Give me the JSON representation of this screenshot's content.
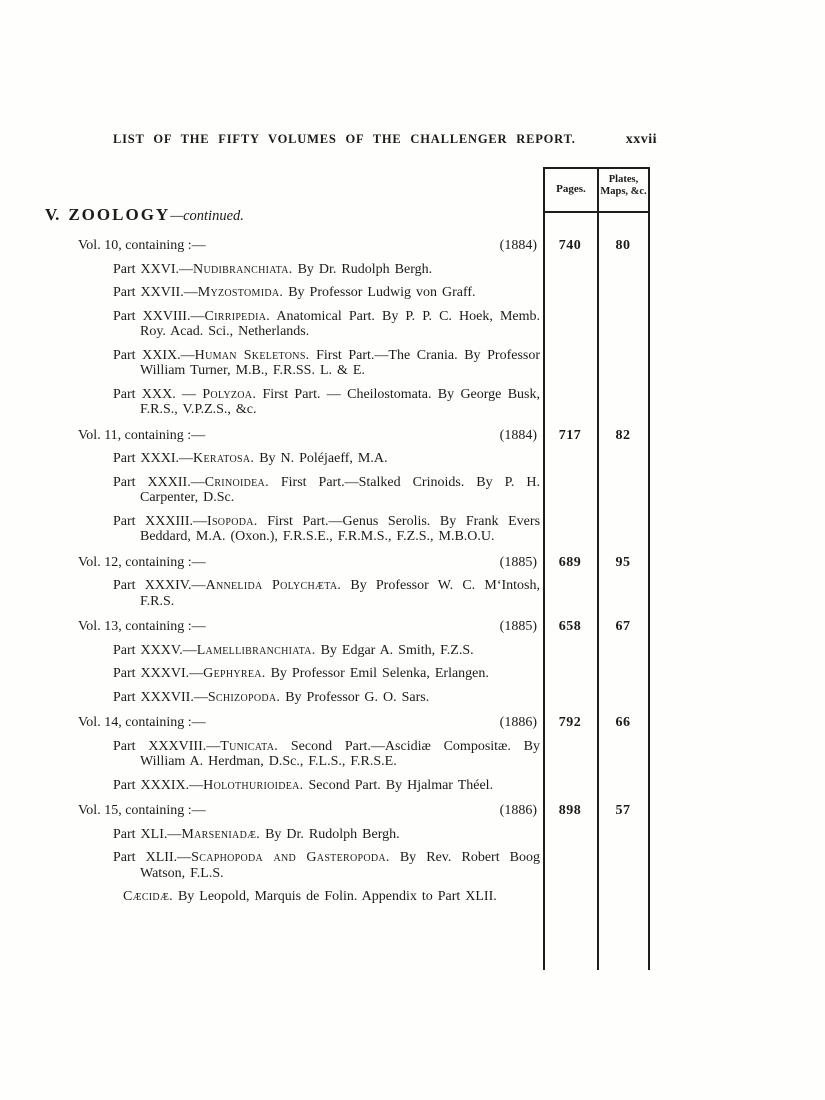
{
  "page": {
    "running_title": "LIST OF THE FIFTY VOLUMES OF THE CHALLENGER REPORT.",
    "page_number": "xxvii",
    "section": {
      "numeral": "V.",
      "title": "ZOOLOGY",
      "continued": "—continued."
    },
    "table_headers": {
      "pages": "Pages.",
      "plates_line1": "Plates,",
      "plates_line2": "Maps, &c."
    }
  },
  "volumes": [
    {
      "label": "Vol. 10, containing :—",
      "year": "(1884)",
      "pages": "740",
      "plates": "80",
      "parts": [
        {
          "prefix": "Part XXVI.—",
          "taxon": "Nudibranchiata.",
          "rest": "By Dr. Rudolph Bergh."
        },
        {
          "prefix": "Part XXVII.—",
          "taxon": "Myzostomida.",
          "rest": "By Professor Ludwig von Graff."
        },
        {
          "prefix": "Part XXVIII.—",
          "taxon": "Cirripedia.",
          "rest": "Anatomical Part. By P. P. C. Hoek, Memb. Roy. Acad. Sci., Netherlands."
        },
        {
          "prefix": "Part XXIX.—",
          "taxon": "Human Skeletons.",
          "rest": "First Part.—The Crania. By Professor William Turner, M.B., F.R.SS. L. & E."
        },
        {
          "prefix": "Part XXX. — ",
          "taxon": "Polyzoa.",
          "rest": "First Part. — Cheilostomata. By George Busk, F.R.S., V.P.Z.S., &c."
        }
      ]
    },
    {
      "label": "Vol. 11, containing :—",
      "year": "(1884)",
      "pages": "717",
      "plates": "82",
      "parts": [
        {
          "prefix": "Part XXXI.—",
          "taxon": "Keratosa.",
          "rest": "By N. Poléjaeff, M.A."
        },
        {
          "prefix": "Part XXXII.—",
          "taxon": "Crinoidea.",
          "rest": "First Part.—Stalked Crinoids. By P. H. Carpenter, D.Sc."
        },
        {
          "prefix": "Part XXXIII.—",
          "taxon": "Isopoda.",
          "rest": "First Part.—Genus Serolis. By Frank Evers Beddard, M.A. (Oxon.), F.R.S.E., F.R.M.S., F.Z.S., M.B.O.U."
        }
      ]
    },
    {
      "label": "Vol. 12, containing :—",
      "year": "(1885)",
      "pages": "689",
      "plates": "95",
      "parts": [
        {
          "prefix": "Part XXXIV.—",
          "taxon": "Annelida Polychæta.",
          "rest": "By Professor W. C. M‘Intosh, F.R.S."
        }
      ]
    },
    {
      "label": "Vol. 13, containing :—",
      "year": "(1885)",
      "pages": "658",
      "plates": "67",
      "parts": [
        {
          "prefix": "Part XXXV.—",
          "taxon": "Lamellibranchiata.",
          "rest": "By Edgar A. Smith, F.Z.S."
        },
        {
          "prefix": "Part XXXVI.—",
          "taxon": "Gephyrea.",
          "rest": "By Professor Emil Selenka, Erlangen."
        },
        {
          "prefix": "Part XXXVII.—",
          "taxon": "Schizopoda.",
          "rest": "By Professor G. O. Sars."
        }
      ]
    },
    {
      "label": "Vol. 14, containing :—",
      "year": "(1886)",
      "pages": "792",
      "plates": "66",
      "parts": [
        {
          "prefix": "Part XXXVIII.—",
          "taxon": "Tunicata.",
          "rest": "Second Part.—Ascidiæ Compositæ. By William A. Herdman, D.Sc., F.L.S., F.R.S.E."
        },
        {
          "prefix": "Part XXXIX.—",
          "taxon": "Holothurioidea.",
          "rest": "Second Part. By Hjalmar Théel."
        }
      ]
    },
    {
      "label": "Vol. 15, containing :—",
      "year": "(1886)",
      "pages": "898",
      "plates": "57",
      "parts": [
        {
          "prefix": "Part XLI.—",
          "taxon": "Marseniadæ.",
          "rest": "By Dr. Rudolph Bergh."
        },
        {
          "prefix": "Part XLII.—",
          "taxon": "Scaphopoda and Gasteropoda.",
          "rest": "By Rev. Robert Boog Watson, F.L.S."
        },
        {
          "prefix": "",
          "taxon": "Cæcidæ.",
          "rest": "By Leopold, Marquis de Folin. Appendix to Part XLII.",
          "appendix": true
        }
      ]
    }
  ]
}
